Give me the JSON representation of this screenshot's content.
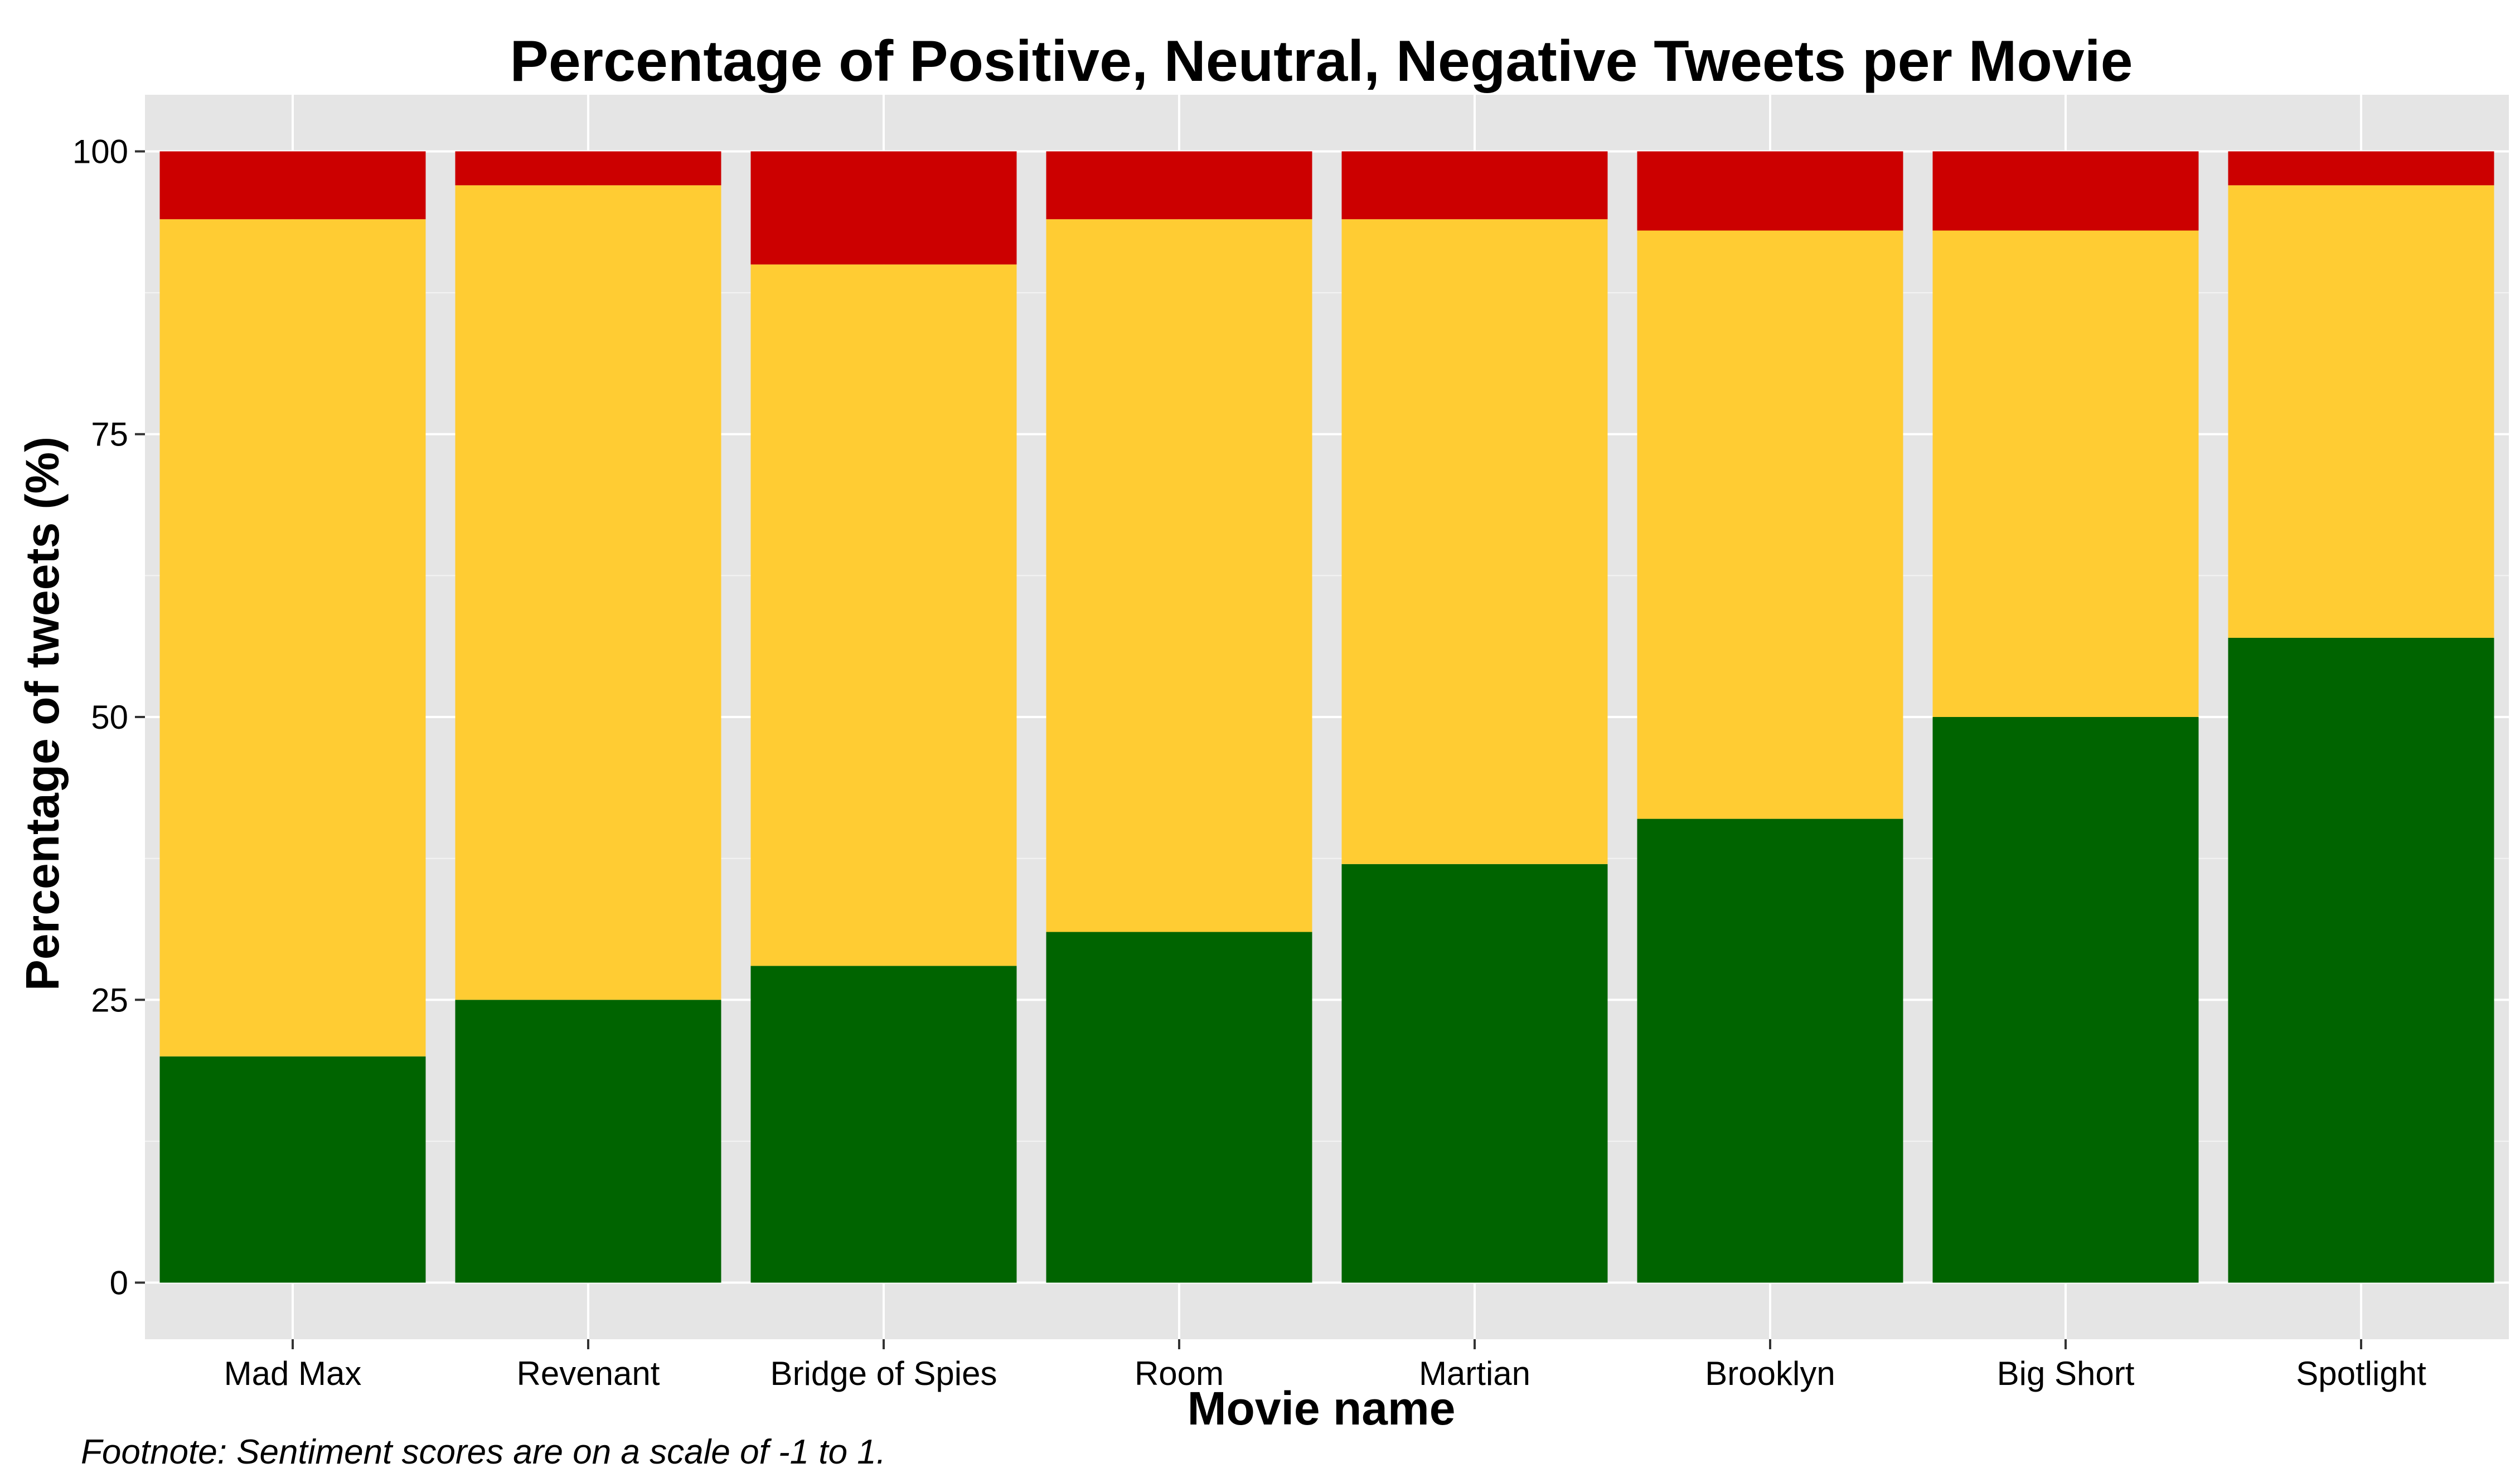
{
  "chart_data": {
    "type": "bar",
    "stacked": true,
    "title": "Percentage of Positive, Neutral, Negative Tweets per Movie",
    "xlabel": "Movie name",
    "ylabel": "Percentage of tweets (%)",
    "footnote": "Footnote: Sentiment scores are on a scale of -1 to 1.",
    "ylim": [
      -5,
      105
    ],
    "yticks": [
      0,
      25,
      50,
      75,
      100
    ],
    "grid": true,
    "legend": "none",
    "categories": [
      "Mad Max",
      "Revenant",
      "Bridge of Spies",
      "Room",
      "Martian",
      "Brooklyn",
      "Big Short",
      "Spotlight"
    ],
    "series": [
      {
        "color": "#006400",
        "values": [
          20,
          25,
          28,
          31,
          37,
          41,
          50,
          57
        ]
      },
      {
        "color": "#FFCC33",
        "values": [
          74,
          72,
          62,
          63,
          57,
          52,
          43,
          40
        ]
      },
      {
        "color": "#CC0000",
        "values": [
          6,
          3,
          10,
          6,
          6,
          7,
          7,
          3
        ]
      }
    ],
    "panel_background": "#E5E5E5",
    "grid_color": "#FFFFFF"
  }
}
